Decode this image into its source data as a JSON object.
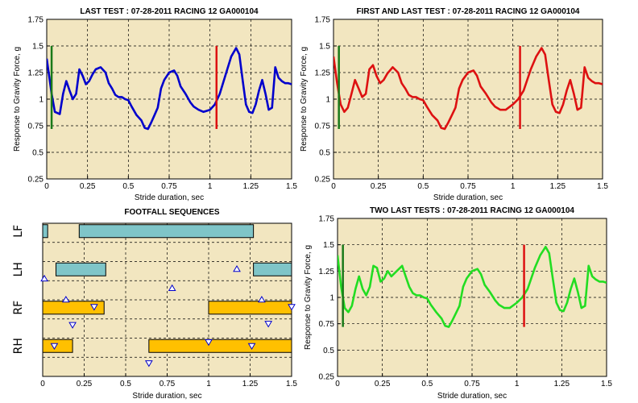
{
  "chart_data": [
    {
      "type": "line",
      "title": "LAST TEST : 07-28-2011 RACING 12 GA000104",
      "xlabel": "Stride duration, sec",
      "ylabel": "Response to Gravity Force, g",
      "xlim": [
        0,
        1.5
      ],
      "ylim": [
        0.25,
        1.75
      ],
      "xticks": [
        "0",
        "0.25",
        "0.5",
        "0.75",
        "1",
        "1.25",
        "1.5"
      ],
      "yticks": [
        "0.25",
        "0.5",
        "0.75",
        "1",
        "1.25",
        "1.5",
        "1.75"
      ],
      "grid": true,
      "background": "#f2e6c0",
      "series": [
        {
          "color": "#0000cc",
          "x": [
            0,
            0.03,
            0.05,
            0.08,
            0.1,
            0.12,
            0.14,
            0.16,
            0.18,
            0.2,
            0.22,
            0.24,
            0.26,
            0.28,
            0.3,
            0.33,
            0.36,
            0.38,
            0.4,
            0.42,
            0.44,
            0.46,
            0.48,
            0.5,
            0.52,
            0.55,
            0.58,
            0.6,
            0.62,
            0.64,
            0.66,
            0.68,
            0.7,
            0.72,
            0.75,
            0.78,
            0.8,
            0.82,
            0.85,
            0.88,
            0.9,
            0.93,
            0.96,
            1.0,
            1.03,
            1.06,
            1.1,
            1.13,
            1.16,
            1.18,
            1.2,
            1.22,
            1.24,
            1.26,
            1.28,
            1.3,
            1.32,
            1.34,
            1.36,
            1.38,
            1.4,
            1.42,
            1.44,
            1.46,
            1.48,
            1.5
          ],
          "y": [
            1.38,
            1.05,
            0.88,
            0.86,
            1.05,
            1.17,
            1.08,
            1.0,
            1.05,
            1.28,
            1.22,
            1.14,
            1.17,
            1.23,
            1.28,
            1.3,
            1.25,
            1.15,
            1.1,
            1.04,
            1.02,
            1.02,
            1.0,
            0.99,
            0.93,
            0.85,
            0.8,
            0.73,
            0.72,
            0.78,
            0.85,
            0.92,
            1.1,
            1.18,
            1.25,
            1.27,
            1.22,
            1.12,
            1.05,
            0.97,
            0.93,
            0.9,
            0.88,
            0.9,
            0.95,
            1.05,
            1.25,
            1.4,
            1.48,
            1.42,
            1.18,
            0.95,
            0.88,
            0.87,
            0.95,
            1.08,
            1.18,
            1.05,
            0.9,
            0.92,
            1.3,
            1.2,
            1.17,
            1.15,
            1.15,
            1.14
          ]
        }
      ],
      "markers": [
        {
          "x": 0.03,
          "y_min": 0.72,
          "y_max": 1.5,
          "color": "#1a7a1a"
        },
        {
          "x": 1.04,
          "y_min": 0.72,
          "y_max": 1.5,
          "color": "#dd1111"
        }
      ]
    },
    {
      "type": "line",
      "title": "FIRST AND LAST TEST : 07-28-2011 RACING 12 GA000104",
      "xlabel": "Stride duration, sec",
      "ylabel": "Response to Gravity Force, g",
      "xlim": [
        0,
        1.5
      ],
      "ylim": [
        0.25,
        1.75
      ],
      "xticks": [
        "0",
        "0.25",
        "0.5",
        "0.75",
        "1",
        "1.25",
        "1.5"
      ],
      "yticks": [
        "0.25",
        "0.5",
        "0.75",
        "1",
        "1.25",
        "1.5",
        "1.75"
      ],
      "grid": true,
      "background": "#f2e6c0",
      "series": [
        {
          "color": "#dd1111",
          "x": [
            0,
            0.02,
            0.04,
            0.06,
            0.08,
            0.1,
            0.12,
            0.14,
            0.16,
            0.18,
            0.2,
            0.22,
            0.24,
            0.26,
            0.28,
            0.3,
            0.33,
            0.36,
            0.38,
            0.4,
            0.42,
            0.44,
            0.46,
            0.48,
            0.5,
            0.52,
            0.55,
            0.58,
            0.6,
            0.62,
            0.64,
            0.66,
            0.68,
            0.7,
            0.72,
            0.75,
            0.78,
            0.8,
            0.82,
            0.85,
            0.88,
            0.9,
            0.93,
            0.96,
            1.0,
            1.03,
            1.06,
            1.1,
            1.13,
            1.16,
            1.18,
            1.2,
            1.22,
            1.24,
            1.26,
            1.28,
            1.3,
            1.32,
            1.34,
            1.36,
            1.38,
            1.4,
            1.42,
            1.44,
            1.46,
            1.48,
            1.5
          ],
          "y": [
            1.4,
            1.15,
            0.95,
            0.88,
            0.92,
            1.05,
            1.18,
            1.1,
            1.02,
            1.05,
            1.28,
            1.32,
            1.22,
            1.15,
            1.18,
            1.24,
            1.3,
            1.25,
            1.15,
            1.1,
            1.04,
            1.02,
            1.02,
            1.0,
            0.99,
            0.93,
            0.85,
            0.8,
            0.73,
            0.72,
            0.78,
            0.85,
            0.92,
            1.1,
            1.18,
            1.25,
            1.27,
            1.22,
            1.12,
            1.05,
            0.97,
            0.93,
            0.9,
            0.9,
            0.95,
            1.0,
            1.08,
            1.28,
            1.4,
            1.48,
            1.42,
            1.18,
            0.95,
            0.88,
            0.87,
            0.95,
            1.08,
            1.18,
            1.05,
            0.9,
            0.92,
            1.3,
            1.2,
            1.17,
            1.15,
            1.15,
            1.14
          ]
        }
      ],
      "markers": [
        {
          "x": 0.03,
          "y_min": 0.72,
          "y_max": 1.5,
          "color": "#1a7a1a"
        },
        {
          "x": 1.04,
          "y_min": 0.72,
          "y_max": 1.5,
          "color": "#dd1111"
        }
      ]
    },
    {
      "type": "gantt",
      "title": "FOOTFALL SEQUENCES",
      "xlabel": "Stride duration, sec",
      "xlim": [
        0,
        1.5
      ],
      "xticks": [
        "0",
        "0.25",
        "0.5",
        "0.75",
        "1",
        "1.25",
        "1.5"
      ],
      "grid": true,
      "background": "#f2e6c0",
      "lanes": [
        "LF",
        "LH",
        "RF",
        "RH"
      ],
      "bars": [
        {
          "lane": "LF",
          "start": 0.0,
          "end": 0.03,
          "color": "#7fc5c8"
        },
        {
          "lane": "LF",
          "start": 0.22,
          "end": 1.27,
          "color": "#7fc5c8"
        },
        {
          "lane": "LH",
          "start": 0.08,
          "end": 0.38,
          "color": "#7fc5c8"
        },
        {
          "lane": "LH",
          "start": 1.27,
          "end": 1.5,
          "color": "#7fc5c8"
        },
        {
          "lane": "RF",
          "start": 0.0,
          "end": 0.37,
          "color": "#ffc000"
        },
        {
          "lane": "RF",
          "start": 1.0,
          "end": 1.5,
          "color": "#ffc000"
        },
        {
          "lane": "RH",
          "start": 0.0,
          "end": 0.18,
          "color": "#ffc000"
        },
        {
          "lane": "RH",
          "start": 0.64,
          "end": 1.5,
          "color": "#ffc000"
        }
      ],
      "triangles": [
        {
          "x": 0.01,
          "lane_pos": 1.45,
          "dir": "up"
        },
        {
          "x": 0.14,
          "lane_pos": 2.0,
          "dir": "up"
        },
        {
          "x": 0.31,
          "lane_pos": 2.18,
          "dir": "down"
        },
        {
          "x": 0.78,
          "lane_pos": 1.7,
          "dir": "up"
        },
        {
          "x": 1.17,
          "lane_pos": 1.2,
          "dir": "up"
        },
        {
          "x": 1.32,
          "lane_pos": 2.0,
          "dir": "up"
        },
        {
          "x": 1.5,
          "lane_pos": 2.18,
          "dir": "down"
        },
        {
          "x": 0.07,
          "lane_pos": 3.2,
          "dir": "down"
        },
        {
          "x": 0.18,
          "lane_pos": 2.65,
          "dir": "down"
        },
        {
          "x": 1.0,
          "lane_pos": 3.1,
          "dir": "down"
        },
        {
          "x": 1.26,
          "lane_pos": 3.2,
          "dir": "down"
        },
        {
          "x": 1.36,
          "lane_pos": 2.62,
          "dir": "down"
        },
        {
          "x": 0.64,
          "lane_pos": 3.65,
          "dir": "down"
        }
      ]
    },
    {
      "type": "line",
      "title": "TWO LAST TESTS : 07-28-2011 RACING 12 GA000104",
      "xlabel": "Stride duration, sec",
      "ylabel": "Response to Gravity Force, g",
      "xlim": [
        0,
        1.5
      ],
      "ylim": [
        0.25,
        1.75
      ],
      "xticks": [
        "0",
        "0.25",
        "0.5",
        "0.75",
        "1",
        "1.25",
        "1.5"
      ],
      "yticks": [
        "0.25",
        "0.5",
        "0.75",
        "1",
        "1.25",
        "1.5",
        "1.75"
      ],
      "grid": true,
      "background": "#f2e6c0",
      "series": [
        {
          "color": "#22dd22",
          "x": [
            0,
            0.02,
            0.04,
            0.06,
            0.08,
            0.1,
            0.12,
            0.14,
            0.16,
            0.18,
            0.2,
            0.22,
            0.24,
            0.26,
            0.28,
            0.3,
            0.33,
            0.36,
            0.38,
            0.4,
            0.42,
            0.44,
            0.46,
            0.48,
            0.5,
            0.52,
            0.55,
            0.58,
            0.6,
            0.62,
            0.64,
            0.66,
            0.68,
            0.7,
            0.72,
            0.75,
            0.78,
            0.8,
            0.82,
            0.85,
            0.88,
            0.9,
            0.93,
            0.96,
            1.0,
            1.03,
            1.06,
            1.1,
            1.13,
            1.16,
            1.18,
            1.2,
            1.22,
            1.24,
            1.26,
            1.28,
            1.3,
            1.32,
            1.34,
            1.36,
            1.38,
            1.4,
            1.42,
            1.44,
            1.46,
            1.48,
            1.5
          ],
          "y": [
            1.4,
            1.1,
            0.9,
            0.86,
            0.92,
            1.08,
            1.2,
            1.08,
            1.02,
            1.1,
            1.3,
            1.28,
            1.15,
            1.18,
            1.25,
            1.2,
            1.25,
            1.3,
            1.2,
            1.1,
            1.04,
            1.02,
            1.02,
            1.0,
            0.99,
            0.93,
            0.86,
            0.8,
            0.73,
            0.72,
            0.78,
            0.85,
            0.92,
            1.1,
            1.18,
            1.25,
            1.27,
            1.22,
            1.12,
            1.05,
            0.97,
            0.93,
            0.9,
            0.9,
            0.95,
            1.0,
            1.08,
            1.28,
            1.4,
            1.48,
            1.42,
            1.18,
            0.95,
            0.88,
            0.87,
            0.95,
            1.08,
            1.18,
            1.05,
            0.9,
            0.92,
            1.3,
            1.2,
            1.17,
            1.15,
            1.15,
            1.14
          ]
        }
      ],
      "markers": [
        {
          "x": 0.03,
          "y_min": 0.72,
          "y_max": 1.5,
          "color": "#1a7a1a"
        },
        {
          "x": 1.04,
          "y_min": 0.72,
          "y_max": 1.5,
          "color": "#dd1111"
        }
      ]
    }
  ]
}
